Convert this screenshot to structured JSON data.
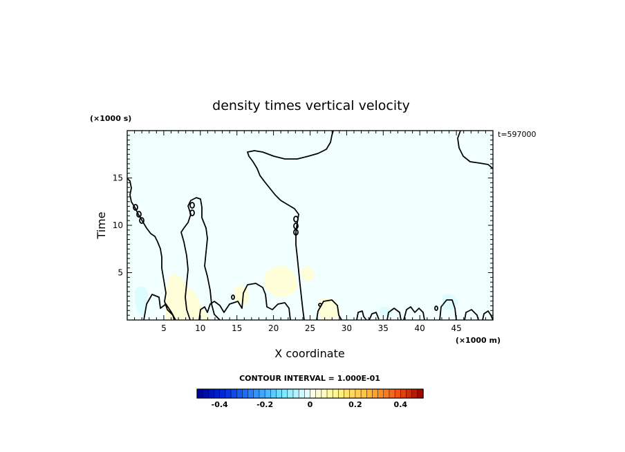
{
  "chart_data": {
    "type": "heatmap",
    "title": "density times vertical velocity",
    "xlabel": "X coordinate",
    "ylabel": "Time",
    "x_unit": "(×1000 m)",
    "y_unit": "(×1000 s)",
    "timestamp": "t=597000",
    "xlim": [
      0,
      50
    ],
    "ylim": [
      0,
      20
    ],
    "x_ticks": [
      5,
      10,
      15,
      20,
      25,
      30,
      35,
      40,
      45
    ],
    "y_ticks": [
      5,
      10,
      15
    ],
    "contour_interval_text": "CONTOUR INTERVAL = 1.000E-01",
    "colorbar": {
      "range": [
        -0.5,
        0.5
      ],
      "ticks": [
        -0.4,
        -0.2,
        0,
        0.2,
        0.4
      ],
      "tick_labels": [
        "-0.4",
        "-0.2",
        "0",
        "0.2",
        "0.4"
      ],
      "steps": 40
    },
    "features": [
      {
        "kind": "zero-contour",
        "desc": "left boundary region",
        "x": [
          0,
          4.6
        ],
        "y": [
          0,
          15
        ]
      },
      {
        "kind": "zero-contour",
        "desc": "thin plume",
        "x": [
          7.5,
          11
        ],
        "y": [
          0,
          12.8
        ]
      },
      {
        "kind": "zero-contour",
        "desc": "large plume",
        "x": [
          16.5,
          25
        ],
        "y": [
          0,
          18
        ]
      },
      {
        "kind": "zero-contour",
        "desc": "top right lobe",
        "x": [
          45,
          50
        ],
        "y": [
          16.5,
          20
        ]
      },
      {
        "kind": "positive-patch",
        "value": 0.1,
        "x": [
          6,
          11
        ],
        "y": [
          0,
          5
        ]
      },
      {
        "kind": "positive-patch",
        "value": 0.1,
        "x": [
          19,
          24
        ],
        "y": [
          3,
          5.5
        ]
      },
      {
        "kind": "negative-patch",
        "value": -0.1,
        "x": [
          1,
          3
        ],
        "y": [
          0,
          3
        ]
      },
      {
        "kind": "background",
        "value": -0.05
      }
    ]
  }
}
